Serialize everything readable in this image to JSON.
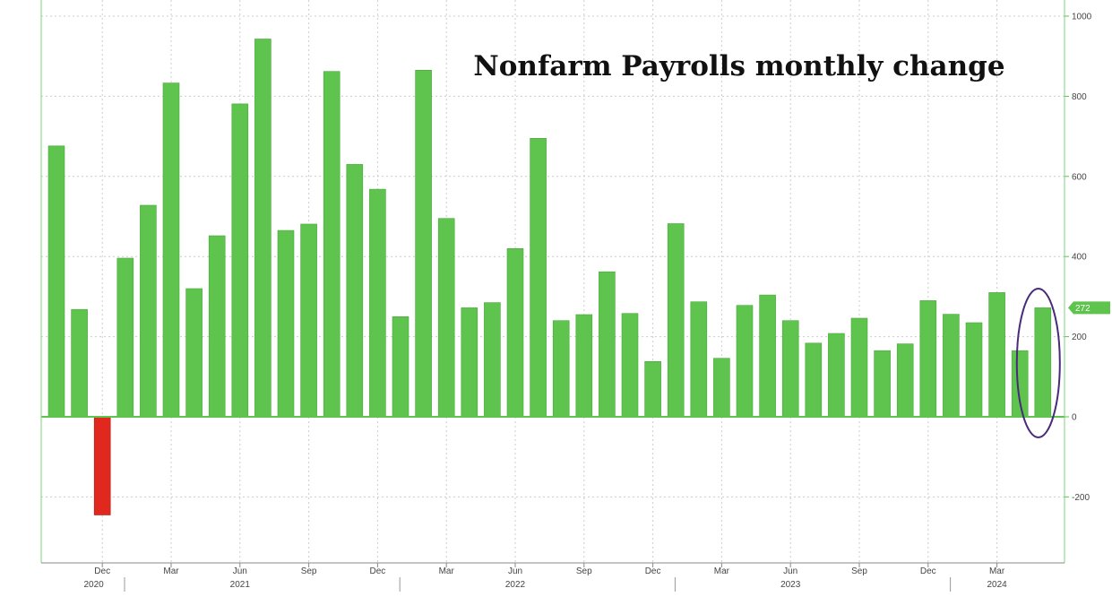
{
  "chart_data": {
    "type": "bar",
    "title": "Nonfarm Payrolls monthly change",
    "xlabel": "",
    "ylabel": "",
    "ylim": [
      -360,
      1000
    ],
    "yticks": [
      1000,
      800,
      600,
      400,
      200,
      0,
      -200
    ],
    "grid": true,
    "categories": [
      "2020-10",
      "2020-11",
      "2020-12",
      "2021-01",
      "2021-02",
      "2021-03",
      "2021-04",
      "2021-05",
      "2021-06",
      "2021-07",
      "2021-08",
      "2021-09",
      "2021-10",
      "2021-11",
      "2021-12",
      "2022-01",
      "2022-02",
      "2022-03",
      "2022-04",
      "2022-05",
      "2022-06",
      "2022-07",
      "2022-08",
      "2022-09",
      "2022-10",
      "2022-11",
      "2022-12",
      "2023-01",
      "2023-02",
      "2023-03",
      "2023-04",
      "2023-05",
      "2023-06",
      "2023-07",
      "2023-08",
      "2023-09",
      "2023-10",
      "2023-11",
      "2023-12",
      "2024-01",
      "2024-02",
      "2024-03",
      "2024-04",
      "2024-05"
    ],
    "values": [
      676,
      268,
      -245,
      396,
      528,
      833,
      320,
      452,
      781,
      943,
      465,
      481,
      862,
      630,
      568,
      250,
      865,
      495,
      272,
      285,
      420,
      695,
      240,
      255,
      362,
      258,
      138,
      482,
      287,
      146,
      278,
      304,
      240,
      184,
      208,
      246,
      165,
      182,
      290,
      256,
      235,
      310,
      165,
      272
    ],
    "x_ticks": [
      {
        "label": "Dec",
        "index": 2
      },
      {
        "label": "Mar",
        "index": 5
      },
      {
        "label": "Jun",
        "index": 8
      },
      {
        "label": "Sep",
        "index": 11
      },
      {
        "label": "Dec",
        "index": 14
      },
      {
        "label": "Mar",
        "index": 17
      },
      {
        "label": "Jun",
        "index": 20
      },
      {
        "label": "Sep",
        "index": 23
      },
      {
        "label": "Dec",
        "index": 26
      },
      {
        "label": "Mar",
        "index": 29
      },
      {
        "label": "Jun",
        "index": 32
      },
      {
        "label": "Sep",
        "index": 35
      },
      {
        "label": "Dec",
        "index": 38
      },
      {
        "label": "Mar",
        "index": 41
      }
    ],
    "year_labels": [
      {
        "label": "2020",
        "index": 1
      },
      {
        "label": "2021",
        "index": 8
      },
      {
        "label": "2022",
        "index": 20
      },
      {
        "label": "2023",
        "index": 32
      },
      {
        "label": "2024",
        "index": 41
      }
    ],
    "last_value_label": "272",
    "highlighted_index": 43,
    "colors": {
      "positive": "#5ec44d",
      "negative": "#e0281e",
      "highlight_ellipse": "#4a2a7a",
      "axis": "#7ed37e",
      "grid": "#cccccc"
    }
  }
}
